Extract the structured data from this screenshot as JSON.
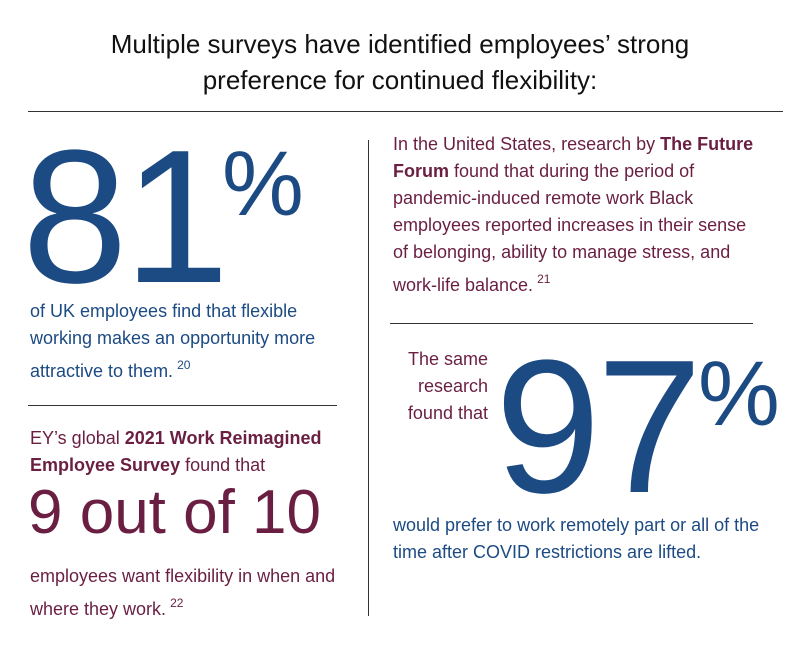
{
  "title": "Multiple surveys have identified employees’ strong preference for continued flexibility:",
  "uk_stat": {
    "figure": "81",
    "unit": "%",
    "text": "of UK employees find that flexible working makes an opportunity more attractive to them.",
    "note": "20"
  },
  "ey_stat": {
    "intro_before": "EY’s global ",
    "survey": "2021 Work Reimagined Employee Survey",
    "intro_after": " found that",
    "figure": "9 out of 10",
    "text": "employees want flexibility in when and where they work.",
    "note": "22"
  },
  "us_research": {
    "before": "In the United States, research by ",
    "source": "The Future Forum",
    "after": " found that during the period of pandemic-induced remote work Black employees reported increases in their sense of belonging, ability to manage stress, and work-life balance.",
    "note": "21"
  },
  "remote_stat": {
    "intro": "The same research found that",
    "figure": "97",
    "unit": "%",
    "text": "would prefer to work remotely part or all of the time after COVID restrictions are lifted."
  }
}
